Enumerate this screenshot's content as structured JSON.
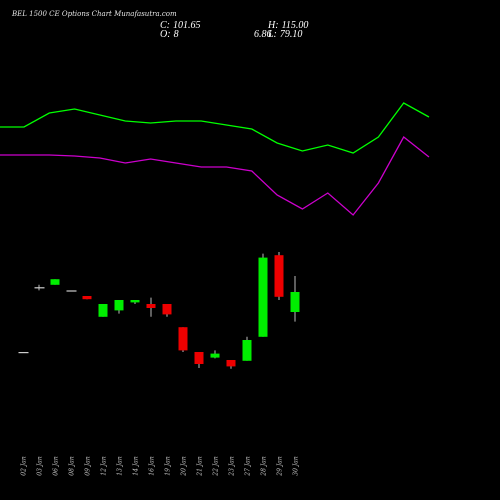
{
  "header": {
    "title": "BEL 1500 CE Options Chart Munafasutra.com",
    "close_label": "C:",
    "close_value": "101.65",
    "high_label": "H:",
    "high_value": "115.00",
    "open_label": "O:",
    "open_value": "8",
    "change_value": "6.86",
    "low_label": "L:",
    "low_value": "79.10"
  },
  "chart_data": {
    "type": "candlestick",
    "dates": [
      "02 Jan",
      "03 Jan",
      "06 Jan",
      "08 Jan",
      "09 Jan",
      "12 Jan",
      "13 Jan",
      "14 Jan",
      "16 Jan",
      "19 Jan",
      "20 Jan",
      "21 Jan",
      "22 Jan",
      "23 Jan",
      "27 Jan",
      "28 Jan",
      "29 Jan",
      "30 Jan"
    ],
    "candles": [
      {
        "open": 0.5,
        "high": 0.5,
        "low": 0.5,
        "close": 0.5
      },
      {
        "open": 8.6,
        "high": 8.9,
        "low": 8.2,
        "close": 8.6
      },
      {
        "open": 8.9,
        "high": 9.6,
        "low": 8.9,
        "close": 9.6
      },
      {
        "open": 8.2,
        "high": 8.2,
        "low": 8.2,
        "close": 8.2
      },
      {
        "open": 7.5,
        "high": 7.5,
        "low": 7.1,
        "close": 7.1
      },
      {
        "open": 4.9,
        "high": 6.5,
        "low": 4.9,
        "close": 6.5
      },
      {
        "open": 5.7,
        "high": 7.0,
        "low": 5.3,
        "close": 7.0
      },
      {
        "open": 6.7,
        "high": 7.0,
        "low": 6.5,
        "close": 7.0
      },
      {
        "open": 6.5,
        "high": 7.3,
        "low": 4.9,
        "close": 6.0
      },
      {
        "open": 6.5,
        "high": 6.5,
        "low": 4.9,
        "close": 5.2
      },
      {
        "open": 3.6,
        "high": 3.6,
        "low": 0.5,
        "close": 0.7
      },
      {
        "open": 0.5,
        "high": 0.5,
        "low": -1.5,
        "close": -1.0
      },
      {
        "open": -0.2,
        "high": 0.7,
        "low": -0.3,
        "close": 0.3
      },
      {
        "open": -0.5,
        "high": -0.5,
        "low": -1.6,
        "close": -1.3
      },
      {
        "open": -0.6,
        "high": 2.4,
        "low": -0.6,
        "close": 2.0
      },
      {
        "open": 2.4,
        "high": 12.8,
        "low": 2.4,
        "close": 12.3
      },
      {
        "open": 12.6,
        "high": 13.0,
        "low": 7.0,
        "close": 7.4
      },
      {
        "open": 5.5,
        "high": 10.0,
        "low": 4.3,
        "close": 8.0
      }
    ],
    "upper_lines": [
      {
        "color": "#00ff00",
        "values": [
          11.6,
          11.6,
          12.3,
          12.5,
          12.2,
          11.9,
          11.8,
          11.9,
          11.9,
          11.7,
          11.5,
          10.8,
          10.4,
          10.7,
          10.3,
          11.1,
          12.8,
          12.1
        ]
      },
      {
        "color": "#cc00cc",
        "values": [
          10.2,
          10.2,
          10.2,
          10.15,
          10.05,
          9.8,
          10.0,
          9.8,
          9.6,
          9.6,
          9.4,
          8.2,
          7.5,
          8.3,
          7.2,
          8.8,
          11.1,
          10.1
        ]
      }
    ],
    "colors": {
      "up": "#00ee00",
      "down": "#ee0000",
      "doji": "#cccccc",
      "background": "#000000",
      "label": "#cccccc"
    }
  }
}
